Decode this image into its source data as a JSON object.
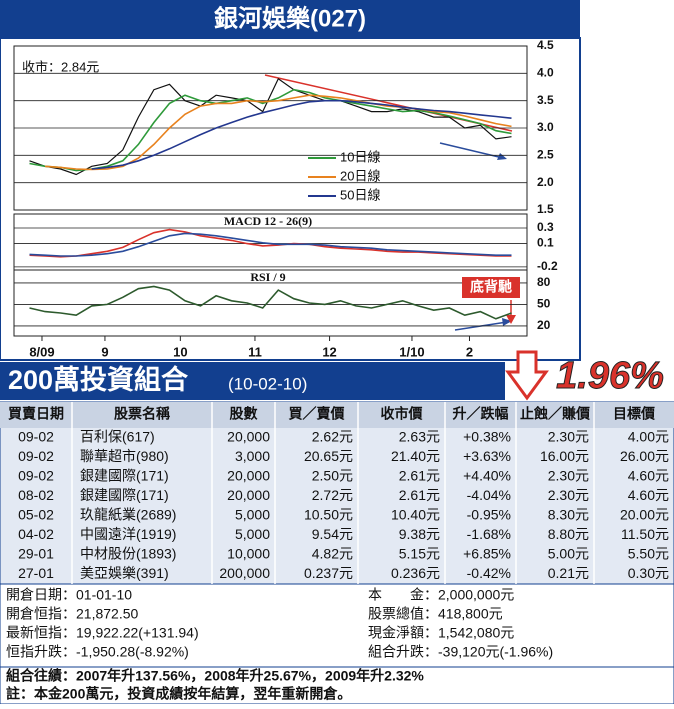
{
  "chart_data": [
    {
      "type": "line",
      "title": "銀河娛樂(027)",
      "annotation": "收市：2.84元",
      "x": [
        0,
        1,
        2,
        3,
        4,
        5,
        6,
        7,
        8,
        9,
        10,
        11,
        12,
        13,
        14,
        15,
        16,
        17,
        18,
        19,
        20,
        21,
        22,
        23,
        24,
        25,
        26,
        27,
        28,
        29,
        30,
        31
      ],
      "xlim": [
        -1,
        32
      ],
      "ylim": [
        1.5,
        4.5
      ],
      "yticks": [
        1.5,
        {
          "value": 2,
          "label": "2.0"
        },
        2.5,
        {
          "value": 3,
          "label": "3.0"
        },
        3.5,
        {
          "value": 4,
          "label": "4.0"
        },
        4.5
      ],
      "grid": true,
      "series": [
        {
          "color": "#111111",
          "values": [
            2.4,
            2.3,
            2.25,
            2.15,
            2.3,
            2.35,
            2.6,
            3.2,
            3.7,
            3.8,
            3.5,
            3.4,
            3.6,
            3.55,
            3.5,
            3.3,
            3.9,
            3.7,
            3.6,
            3.5,
            3.5,
            3.4,
            3.3,
            3.3,
            3.35,
            3.3,
            3.2,
            3.2,
            3.0,
            3.05,
            2.8,
            2.84
          ]
        },
        {
          "name": "10日線",
          "color": "#2e9a3a",
          "values": [
            2.35,
            2.3,
            2.28,
            2.22,
            2.25,
            2.3,
            2.4,
            2.7,
            3.1,
            3.45,
            3.6,
            3.5,
            3.45,
            3.5,
            3.55,
            3.45,
            3.55,
            3.7,
            3.65,
            3.55,
            3.5,
            3.45,
            3.4,
            3.35,
            3.3,
            3.32,
            3.28,
            3.22,
            3.15,
            3.08,
            2.95,
            2.9
          ]
        },
        {
          "name": "20日線",
          "color": "#e8821e",
          "values": [
            null,
            2.3,
            2.28,
            2.25,
            2.24,
            2.25,
            2.3,
            2.45,
            2.7,
            3.0,
            3.25,
            3.4,
            3.45,
            3.45,
            3.5,
            3.48,
            3.5,
            3.55,
            3.6,
            3.58,
            3.55,
            3.5,
            3.45,
            3.4,
            3.38,
            3.35,
            3.3,
            3.28,
            3.22,
            3.15,
            3.08,
            3.03
          ]
        },
        {
          "name": "50日線",
          "color": "#23378f",
          "values": [
            null,
            null,
            null,
            null,
            2.25,
            2.28,
            2.32,
            2.4,
            2.5,
            2.62,
            2.75,
            2.88,
            3.0,
            3.1,
            3.2,
            3.28,
            3.35,
            3.42,
            3.48,
            3.5,
            3.5,
            3.48,
            3.45,
            3.42,
            3.38,
            3.35,
            3.32,
            3.3,
            3.27,
            3.24,
            3.21,
            3.18
          ]
        }
      ]
    },
    {
      "type": "line",
      "title": "MACD 12 - 26(9)",
      "x": [
        0,
        1,
        2,
        3,
        4,
        5,
        6,
        7,
        8,
        9,
        10,
        11,
        12,
        13,
        14,
        15,
        16,
        17,
        18,
        19,
        20,
        21,
        22,
        23,
        24,
        25,
        26,
        27,
        28,
        29,
        30,
        31
      ],
      "xlim": [
        -1,
        32
      ],
      "ylim": [
        -0.24,
        0.48
      ],
      "yticks": [
        -0.2,
        0.1,
        0.3
      ],
      "grid": true,
      "series": [
        {
          "color": "#d9322b",
          "values": [
            -0.05,
            -0.06,
            -0.07,
            -0.06,
            -0.03,
            0.0,
            0.05,
            0.15,
            0.24,
            0.28,
            0.25,
            0.2,
            0.17,
            0.14,
            0.1,
            0.07,
            0.08,
            0.1,
            0.09,
            0.06,
            0.04,
            0.03,
            0.02,
            0.0,
            -0.01,
            -0.01,
            -0.02,
            -0.03,
            -0.04,
            -0.05,
            -0.06,
            -0.06
          ]
        },
        {
          "color": "#2a4c9c",
          "values": [
            -0.04,
            -0.05,
            -0.06,
            -0.06,
            -0.05,
            -0.03,
            0.0,
            0.06,
            0.13,
            0.2,
            0.23,
            0.22,
            0.2,
            0.17,
            0.14,
            0.11,
            0.09,
            0.09,
            0.09,
            0.08,
            0.06,
            0.05,
            0.04,
            0.02,
            0.01,
            0.0,
            -0.01,
            -0.02,
            -0.03,
            -0.04,
            -0.05,
            -0.05
          ]
        }
      ]
    },
    {
      "type": "line",
      "title": "RSI / 9",
      "annotation": "底背馳",
      "x": [
        0,
        1,
        2,
        3,
        4,
        5,
        6,
        7,
        8,
        9,
        10,
        11,
        12,
        13,
        14,
        15,
        16,
        17,
        18,
        19,
        20,
        21,
        22,
        23,
        24,
        25,
        26,
        27,
        28,
        29,
        30,
        31
      ],
      "xlim": [
        -1,
        32
      ],
      "ylim": [
        6,
        98
      ],
      "yticks": [
        20,
        50,
        80
      ],
      "grid": true,
      "xticks": [
        {
          "value": 0.8,
          "label": "8/09"
        },
        {
          "value": 4.85,
          "label": "9"
        },
        {
          "value": 9.7,
          "label": "10"
        },
        {
          "value": 14.5,
          "label": "11"
        },
        {
          "value": 19.3,
          "label": "12"
        },
        {
          "value": 24.6,
          "label": "1/10"
        },
        {
          "value": 28.3,
          "label": "2"
        }
      ],
      "series": [
        {
          "color": "#2d5a2d",
          "values": [
            45,
            40,
            38,
            35,
            48,
            50,
            60,
            72,
            75,
            70,
            55,
            48,
            62,
            55,
            52,
            45,
            70,
            58,
            52,
            50,
            55,
            48,
            45,
            50,
            55,
            48,
            42,
            45,
            35,
            40,
            30,
            38
          ]
        }
      ]
    }
  ],
  "portfolio": {
    "title": "200萬投資組合",
    "date": "(10-02-10)",
    "change": "1.96%"
  },
  "table": {
    "header": [
      "買賣日期",
      "股票名稱",
      "股數",
      "買／賣價",
      "收市價",
      "升／跌幅",
      "止蝕／賺價",
      "目標價"
    ],
    "rows": [
      [
        "09-02",
        "百利保(617)",
        "20,000",
        "2.62元",
        "2.63元",
        "+0.38%",
        "2.30元",
        "4.00元"
      ],
      [
        "09-02",
        "聯華超市(980)",
        "3,000",
        "20.65元",
        "21.40元",
        "+3.63%",
        "16.00元",
        "26.00元"
      ],
      [
        "09-02",
        "銀建國際(171)",
        "20,000",
        "2.50元",
        "2.61元",
        "+4.40%",
        "2.30元",
        "4.60元"
      ],
      [
        "08-02",
        "銀建國際(171)",
        "20,000",
        "2.72元",
        "2.61元",
        "-4.04%",
        "2.30元",
        "4.60元"
      ],
      [
        "05-02",
        "玖龍紙業(2689)",
        "5,000",
        "10.50元",
        "10.40元",
        "-0.95%",
        "8.30元",
        "20.00元"
      ],
      [
        "04-02",
        "中國遠洋(1919)",
        "5,000",
        "9.54元",
        "9.38元",
        "-1.68%",
        "8.80元",
        "11.50元"
      ],
      [
        "29-01",
        "中材股份(1893)",
        "10,000",
        "4.82元",
        "5.15元",
        "+6.85%",
        "5.00元",
        "5.50元"
      ],
      [
        "27-01",
        "美亞娛樂(391)",
        "200,000",
        "0.237元",
        "0.236元",
        "-0.42%",
        "0.21元",
        "0.30元"
      ]
    ]
  },
  "summary": {
    "left": [
      "開倉日期：01-01-10",
      "開倉恒指：21,872.50",
      "最新恒指：19,922.22(+131.94)",
      "恒指升跌：-1,950.28(-8.92%)"
    ],
    "right": [
      "本　　金：2,000,000元",
      "股票總值：418,800元",
      "現金淨額：1,542,080元",
      "組合升跌：-39,120元(-1.96%)"
    ],
    "record": "組合往績：2007年升137.56%，2008年升25.67%，2009年升2.32%",
    "note": "註：本金200萬元，投資成績按年結算，翌年重新開倉。"
  }
}
